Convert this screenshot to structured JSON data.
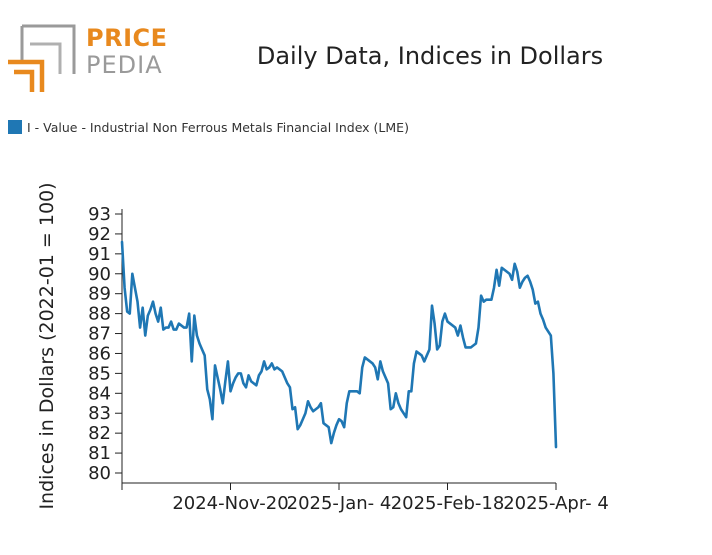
{
  "logo": {
    "line1": "PRICE",
    "line2": "PEDIA",
    "accent_color": "#e8891e",
    "gray_color": "#9a9a9a"
  },
  "title": "Daily Data, Indices in Dollars",
  "legend": {
    "label": "I - Value - Industrial Non Ferrous Metals Financial Index (LME)",
    "color": "#1f77b4"
  },
  "chart_data": {
    "type": "line",
    "title": "Daily Data, Indices in Dollars",
    "xlabel": "",
    "ylabel": "Indices in Dollars (2022-01 = 100)",
    "ylim": [
      80,
      93
    ],
    "y_ticks": [
      80,
      81,
      82,
      83,
      84,
      85,
      86,
      87,
      88,
      89,
      90,
      91,
      92,
      93
    ],
    "x_tick_labels": [
      "2024-Nov-20",
      "2025-Jan- 4",
      "2025-Feb-18",
      "2025-Apr- 4"
    ],
    "grid": false,
    "legend_position": "top-left",
    "series": [
      {
        "name": "I - Value - Industrial Non Ferrous Metals Financial Index (LME)",
        "color": "#1f77b4",
        "values": [
          91.6,
          89.3,
          88.1,
          88.0,
          90.0,
          89.3,
          88.6,
          87.3,
          88.3,
          86.9,
          87.9,
          88.2,
          88.6,
          88.0,
          87.6,
          88.3,
          87.2,
          87.3,
          87.3,
          87.6,
          87.2,
          87.2,
          87.5,
          87.4,
          87.3,
          87.3,
          88.0,
          85.6,
          87.9,
          86.9,
          86.5,
          86.2,
          85.9,
          84.2,
          83.7,
          82.7,
          85.4,
          84.8,
          84.2,
          83.5,
          84.6,
          85.6,
          84.1,
          84.5,
          84.8,
          85.0,
          85.0,
          84.5,
          84.3,
          84.9,
          84.6,
          84.5,
          84.4,
          84.9,
          85.1,
          85.6,
          85.2,
          85.3,
          85.5,
          85.2,
          85.3,
          85.2,
          85.1,
          84.8,
          84.5,
          84.3,
          83.2,
          83.3,
          82.2,
          82.4,
          82.7,
          83.0,
          83.6,
          83.3,
          83.1,
          83.2,
          83.3,
          83.5,
          82.5,
          82.4,
          82.3,
          81.5,
          82.0,
          82.4,
          82.7,
          82.6,
          82.3,
          83.5,
          84.1,
          84.1,
          84.1,
          84.1,
          84.0,
          85.3,
          85.8,
          85.7,
          85.6,
          85.5,
          85.3,
          84.7,
          85.6,
          85.1,
          84.8,
          84.5,
          83.2,
          83.3,
          84.0,
          83.5,
          83.2,
          83.0,
          82.8,
          84.1,
          84.1,
          85.5,
          86.1,
          86.0,
          85.9,
          85.6,
          85.9,
          86.2,
          88.4,
          87.5,
          86.2,
          86.4,
          87.6,
          88.0,
          87.6,
          87.5,
          87.4,
          87.3,
          86.9,
          87.4,
          86.8,
          86.3,
          86.3,
          86.3,
          86.4,
          86.5,
          87.3,
          88.9,
          88.6,
          88.7,
          88.7,
          88.7,
          89.3,
          90.2,
          89.4,
          90.3,
          90.2,
          90.1,
          90.0,
          89.7,
          90.5,
          90.1,
          89.3,
          89.6,
          89.8,
          89.9,
          89.6,
          89.2,
          88.5,
          88.6,
          88.0,
          87.7,
          87.3,
          87.1,
          86.9,
          85.0,
          81.3
        ]
      }
    ]
  }
}
